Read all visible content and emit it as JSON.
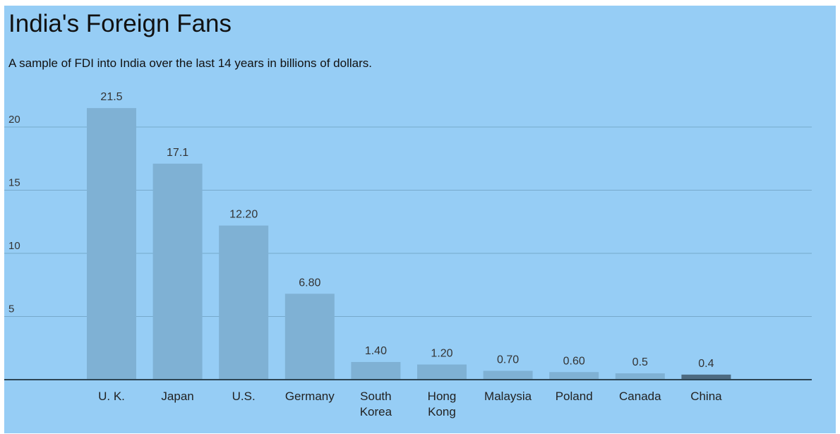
{
  "title": "India's Foreign Fans",
  "subtitle": "A sample of FDI into India over the last 14 years in billions of dollars.",
  "colors": {
    "background": "#96cdf5",
    "bar": "#7fb1d4",
    "bar_highlight": "#4d6a80",
    "gridline": "#77aacc",
    "axis": "#2c4454"
  },
  "chart_data": {
    "type": "bar",
    "categories": [
      "U. K.",
      "Japan",
      "U.S.",
      "Germany",
      "South Korea",
      "Hong Kong",
      "Malaysia",
      "Poland",
      "Canada",
      "China"
    ],
    "category_lines": [
      [
        "U. K."
      ],
      [
        "Japan"
      ],
      [
        "U.S."
      ],
      [
        "Germany"
      ],
      [
        "South",
        "Korea"
      ],
      [
        "Hong",
        "Kong"
      ],
      [
        "Malaysia"
      ],
      [
        "Poland"
      ],
      [
        "Canada"
      ],
      [
        "China"
      ]
    ],
    "values": [
      21.5,
      17.1,
      12.2,
      6.8,
      1.4,
      1.2,
      0.7,
      0.6,
      0.5,
      0.4
    ],
    "data_labels": [
      "21.5",
      "17.1",
      "12.20",
      "6.80",
      "1.40",
      "1.20",
      "0.70",
      "0.60",
      "0.5",
      "0.4"
    ],
    "highlight": "China",
    "yticks": [
      5,
      10,
      15,
      20
    ],
    "ylim": [
      0,
      22
    ],
    "xlabel": "",
    "ylabel": "",
    "grid": true,
    "legend": "none"
  }
}
